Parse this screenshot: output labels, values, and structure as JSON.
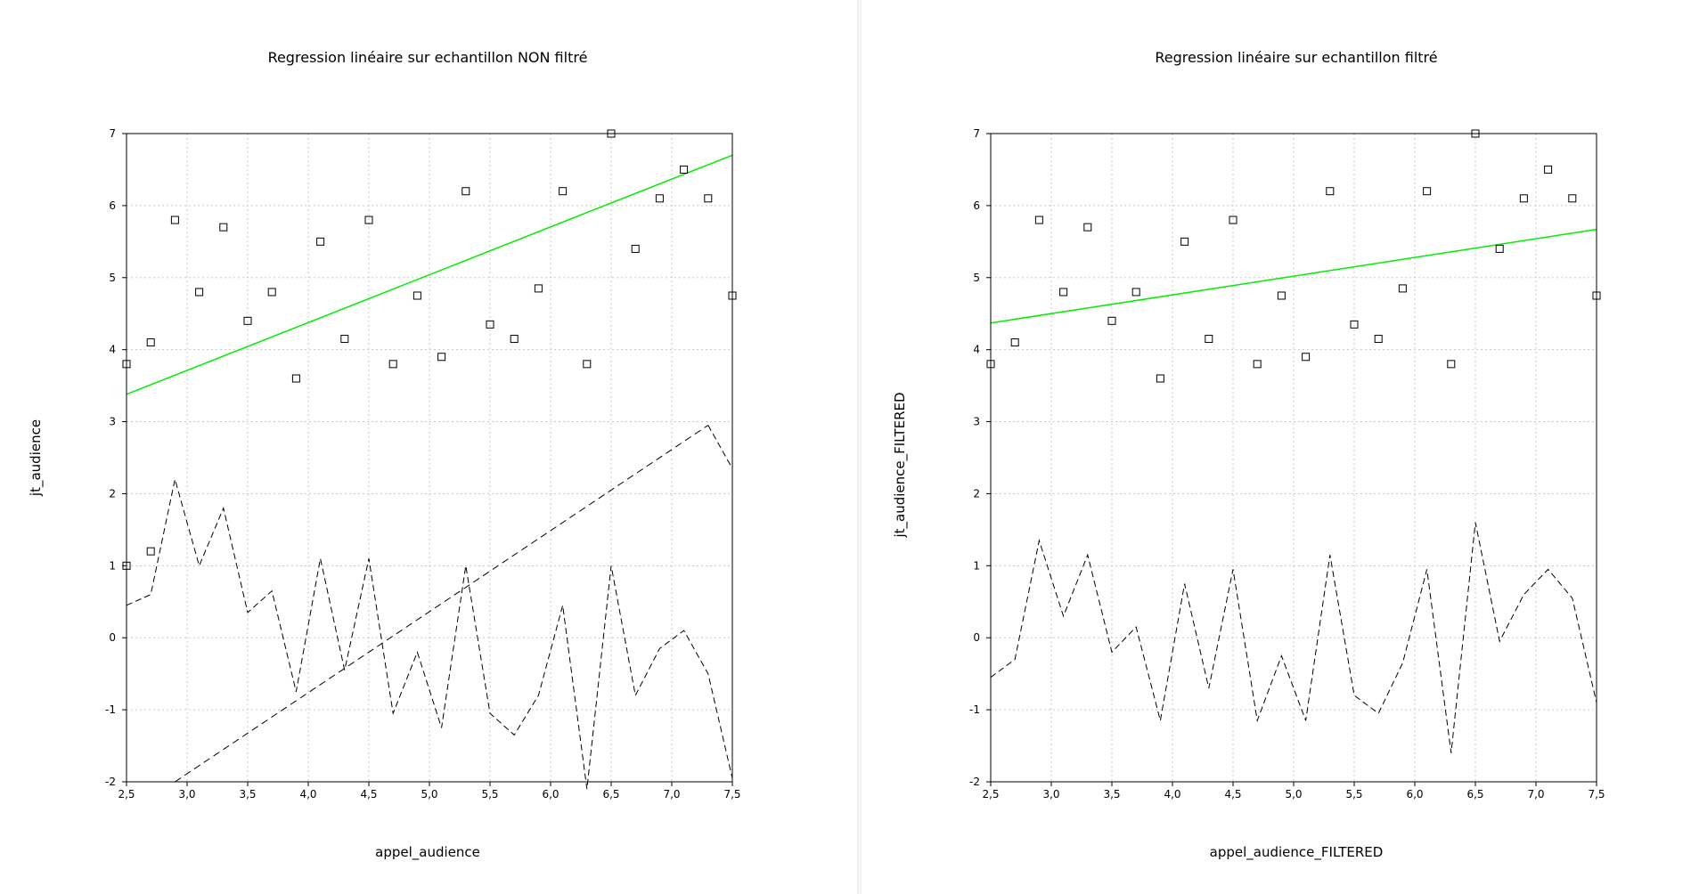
{
  "chart_data": [
    {
      "type": "scatter",
      "title": "Regression linéaire sur echantillon  NON filtré",
      "xlabel": "appel_audience",
      "ylabel": "jt_audience",
      "xlim": [
        2.5,
        7.5
      ],
      "ylim": [
        -2,
        7
      ],
      "xticks": [
        "2,5",
        "3,0",
        "3,5",
        "4,0",
        "4,5",
        "5,0",
        "5,5",
        "6,0",
        "6,5",
        "7,0",
        "7,5"
      ],
      "yticks": [
        "-2",
        "-1",
        "0",
        "1",
        "2",
        "3",
        "4",
        "5",
        "6",
        "7"
      ],
      "grid": true,
      "scatter_points": {
        "x": [
          2.5,
          2.7,
          2.9,
          3.1,
          3.3,
          3.5,
          3.7,
          3.9,
          4.1,
          4.3,
          4.5,
          4.7,
          4.9,
          5.1,
          5.3,
          5.5,
          5.7,
          5.9,
          6.1,
          6.3,
          6.5,
          6.7,
          6.9,
          7.1,
          7.3,
          7.5
        ],
        "y": [
          3.8,
          4.1,
          5.8,
          4.8,
          5.7,
          4.4,
          4.8,
          3.6,
          5.5,
          4.15,
          5.8,
          3.8,
          4.75,
          3.9,
          6.2,
          4.35,
          4.15,
          4.85,
          6.2,
          3.8,
          7.0,
          5.4,
          6.1,
          6.5,
          6.1,
          4.75
        ]
      },
      "extra_points": [
        {
          "x": 2.5,
          "y": 1.0
        },
        {
          "x": 2.7,
          "y": 1.2
        }
      ],
      "regression_line": {
        "x": [
          2.5,
          7.5
        ],
        "y": [
          3.38,
          6.7
        ],
        "color": "#00ee00"
      },
      "residual_line": {
        "x": [
          2.5,
          2.7,
          2.9,
          3.1,
          3.3,
          3.5,
          3.7,
          3.9,
          4.1,
          4.3,
          4.5,
          4.7,
          4.9,
          5.1,
          5.3,
          5.5,
          5.7,
          5.9,
          6.1,
          6.3,
          6.5,
          6.7,
          6.9,
          7.1,
          7.3,
          7.5
        ],
        "y": [
          0.45,
          0.6,
          2.2,
          1.0,
          1.8,
          0.35,
          0.65,
          -0.75,
          1.1,
          -0.45,
          1.1,
          -1.05,
          -0.2,
          -1.25,
          1.0,
          -1.05,
          -1.35,
          -0.8,
          0.45,
          -2.1,
          1.0,
          -0.8,
          -0.15,
          0.1,
          -0.5,
          -1.95
        ]
      },
      "residual_line_tail": {
        "x": [
          7.3,
          7.5
        ],
        "y": [
          2.95,
          2.35
        ]
      },
      "trend_line": {
        "x": [
          2.9,
          7.3
        ],
        "y": [
          -2.0,
          2.95
        ]
      }
    },
    {
      "type": "scatter",
      "title": "Regression linéaire sur echantillon  filtré",
      "xlabel": "appel_audience_FILTERED",
      "ylabel": "jt_audience_FILTERED",
      "xlim": [
        2.5,
        7.5
      ],
      "ylim": [
        -2,
        7
      ],
      "xticks": [
        "2,5",
        "3,0",
        "3,5",
        "4,0",
        "4,5",
        "5,0",
        "5,5",
        "6,0",
        "6,5",
        "7,0",
        "7,5"
      ],
      "yticks": [
        "-2",
        "-1",
        "0",
        "1",
        "2",
        "3",
        "4",
        "5",
        "6",
        "7"
      ],
      "grid": true,
      "scatter_points": {
        "x": [
          2.5,
          2.7,
          2.9,
          3.1,
          3.3,
          3.5,
          3.7,
          3.9,
          4.1,
          4.3,
          4.5,
          4.7,
          4.9,
          5.1,
          5.3,
          5.5,
          5.7,
          5.9,
          6.1,
          6.3,
          6.5,
          6.7,
          6.9,
          7.1,
          7.3,
          7.5
        ],
        "y": [
          3.8,
          4.1,
          5.8,
          4.8,
          5.7,
          4.4,
          4.8,
          3.6,
          5.5,
          4.15,
          5.8,
          3.8,
          4.75,
          3.9,
          6.2,
          4.35,
          4.15,
          4.85,
          6.2,
          3.8,
          7.0,
          5.4,
          6.1,
          6.5,
          6.1,
          4.75
        ]
      },
      "extra_points": [],
      "regression_line": {
        "x": [
          2.5,
          7.5
        ],
        "y": [
          4.37,
          5.67
        ],
        "color": "#00ee00"
      },
      "residual_line": {
        "x": [
          2.5,
          2.7,
          2.9,
          3.1,
          3.3,
          3.5,
          3.7,
          3.9,
          4.1,
          4.3,
          4.5,
          4.7,
          4.9,
          5.1,
          5.3,
          5.5,
          5.7,
          5.9,
          6.1,
          6.3,
          6.5,
          6.7,
          6.9,
          7.1,
          7.3,
          7.5
        ],
        "y": [
          -0.55,
          -0.3,
          1.35,
          0.3,
          1.15,
          -0.2,
          0.15,
          -1.15,
          0.75,
          -0.7,
          0.95,
          -1.15,
          -0.25,
          -1.15,
          1.15,
          -0.8,
          -1.05,
          -0.35,
          0.95,
          -1.6,
          1.6,
          -0.05,
          0.6,
          0.95,
          0.55,
          -0.9
        ]
      },
      "residual_line_tail": null,
      "trend_line": null
    }
  ]
}
